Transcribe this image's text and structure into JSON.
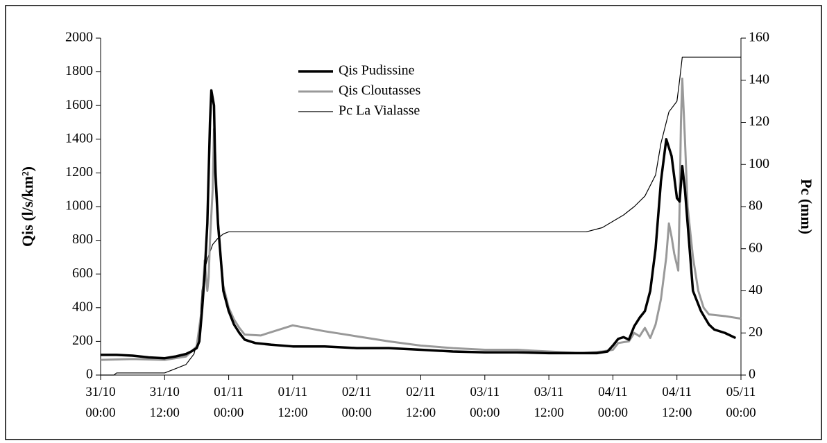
{
  "chart_data": {
    "type": "line",
    "xlim": [
      "31/10 00:00",
      "05/11 00:00"
    ],
    "xticks": [
      "31/10\n00:00",
      "31/10\n12:00",
      "01/11\n00:00",
      "01/11\n12:00",
      "02/11\n00:00",
      "02/11\n12:00",
      "03/11\n00:00",
      "03/11\n12:00",
      "04/11\n00:00",
      "04/11\n12:00",
      "05/11\n00:00"
    ],
    "ylabel": "Qis (l/s/km²)",
    "ylim": [
      0,
      2000
    ],
    "yticks": [
      0,
      200,
      400,
      600,
      800,
      1000,
      1200,
      1400,
      1600,
      1800,
      2000
    ],
    "y2label": "Pc (mm)",
    "y2lim": [
      0,
      160
    ],
    "y2ticks": [
      0,
      20,
      40,
      60,
      80,
      100,
      120,
      140,
      160
    ],
    "grid": false,
    "legend": "upper center",
    "series": [
      {
        "name": "Qis Pudissine",
        "color": "#000000",
        "line_width": 3.5,
        "x": [
          "31/10 00:00",
          "31/10 03:00",
          "31/10 06:00",
          "31/10 09:00",
          "31/10 12:00",
          "31/10 14:00",
          "31/10 16:00",
          "31/10 17:00",
          "31/10 18:00",
          "31/10 18:30",
          "31/10 19:00",
          "31/10 19:30",
          "31/10 20:00",
          "31/10 20:30",
          "31/10 20:45",
          "31/10 21:15",
          "31/10 21:30",
          "31/10 22:00",
          "31/10 22:30",
          "31/10 23:00",
          "01/11 00:00",
          "01/11 01:00",
          "01/11 02:00",
          "01/11 03:00",
          "01/11 04:00",
          "01/11 05:00",
          "01/11 08:00",
          "01/11 12:00",
          "01/11 18:00",
          "02/11 00:00",
          "02/11 06:00",
          "02/11 12:00",
          "02/11 18:00",
          "03/11 00:00",
          "03/11 06:00",
          "03/11 12:00",
          "03/11 18:00",
          "03/11 21:00",
          "03/11 23:00",
          "04/11 00:00",
          "04/11 01:00",
          "04/11 02:00",
          "04/11 03:00",
          "04/11 04:00",
          "04/11 05:00",
          "04/11 06:00",
          "04/11 07:00",
          "04/11 08:00",
          "04/11 09:00",
          "04/11 10:00",
          "04/11 11:00",
          "04/11 12:00",
          "04/11 12:30",
          "04/11 13:00",
          "04/11 13:30",
          "04/11 14:30",
          "04/11 15:00",
          "04/11 16:30",
          "04/11 18:00",
          "04/11 19:00",
          "04/11 21:00",
          "04/11 23:00"
        ],
        "values": [
          120,
          120,
          115,
          105,
          100,
          110,
          125,
          140,
          160,
          200,
          380,
          600,
          900,
          1500,
          1690,
          1600,
          1200,
          900,
          700,
          500,
          380,
          300,
          250,
          210,
          200,
          190,
          180,
          170,
          170,
          160,
          160,
          150,
          140,
          135,
          135,
          130,
          130,
          130,
          140,
          175,
          215,
          225,
          210,
          290,
          340,
          380,
          500,
          750,
          1150,
          1400,
          1300,
          1050,
          1030,
          1240,
          1100,
          700,
          500,
          380,
          300,
          270,
          250,
          220
        ]
      },
      {
        "name": "Qis Cloutasses",
        "color": "#999999",
        "line_width": 3,
        "x": [
          "31/10 00:00",
          "31/10 06:00",
          "31/10 12:00",
          "31/10 16:00",
          "31/10 18:00",
          "31/10 19:00",
          "31/10 19:30",
          "31/10 20:00",
          "31/10 20:15",
          "31/10 20:30",
          "31/10 21:00",
          "31/10 21:15",
          "31/10 21:30",
          "31/10 22:00",
          "31/10 22:30",
          "31/10 23:00",
          "01/11 00:00",
          "01/11 01:00",
          "01/11 02:00",
          "01/11 03:00",
          "01/11 06:00",
          "01/11 12:00",
          "01/11 18:00",
          "02/11 00:00",
          "02/11 06:00",
          "02/11 12:00",
          "02/11 18:00",
          "03/11 00:00",
          "03/11 06:00",
          "03/11 12:00",
          "03/11 18:00",
          "03/11 22:00",
          "04/11 00:00",
          "04/11 01:00",
          "04/11 03:00",
          "04/11 04:00",
          "04/11 05:00",
          "04/11 06:00",
          "04/11 07:00",
          "04/11 08:00",
          "04/11 09:00",
          "04/11 10:00",
          "04/11 10:30",
          "04/11 11:00",
          "04/11 11:30",
          "04/11 12:15",
          "04/11 12:30",
          "04/11 12:45",
          "04/11 13:00",
          "04/11 13:30",
          "04/11 14:00",
          "04/11 15:00",
          "04/11 16:00",
          "04/11 17:00",
          "04/11 18:00",
          "04/11 21:00",
          "05/11 00:00"
        ],
        "values": [
          90,
          95,
          90,
          110,
          170,
          400,
          680,
          500,
          580,
          800,
          1100,
          1460,
          1300,
          900,
          700,
          530,
          400,
          330,
          280,
          240,
          235,
          295,
          260,
          230,
          200,
          175,
          160,
          150,
          150,
          140,
          130,
          140,
          150,
          190,
          200,
          250,
          230,
          280,
          220,
          300,
          450,
          700,
          900,
          820,
          720,
          620,
          1000,
          1500,
          1760,
          1400,
          1000,
          700,
          500,
          400,
          360,
          350,
          335
        ]
      },
      {
        "name": "Pc La Vialasse",
        "color": "#000000",
        "line_width": 1.2,
        "axis": "y2",
        "x": [
          "31/10 00:00",
          "31/10 02:30",
          "31/10 03:00",
          "31/10 12:00",
          "31/10 14:00",
          "31/10 16:00",
          "31/10 17:30",
          "31/10 18:30",
          "31/10 19:00",
          "31/10 19:30",
          "31/10 20:00",
          "31/10 21:00",
          "31/10 22:00",
          "31/10 23:00",
          "01/11 00:00",
          "03/11 19:00",
          "03/11 22:00",
          "04/11 00:00",
          "04/11 02:00",
          "04/11 04:00",
          "04/11 06:00",
          "04/11 08:00",
          "04/11 09:00",
          "04/11 10:30",
          "04/11 12:00",
          "04/11 12:30",
          "04/11 13:00",
          "05/11 00:00"
        ],
        "values": [
          0,
          0,
          1,
          1,
          3,
          5,
          10,
          20,
          40,
          50,
          55,
          62,
          65,
          67,
          68,
          68,
          70,
          73,
          76,
          80,
          85,
          95,
          110,
          125,
          130,
          140,
          151,
          151
        ]
      }
    ]
  }
}
